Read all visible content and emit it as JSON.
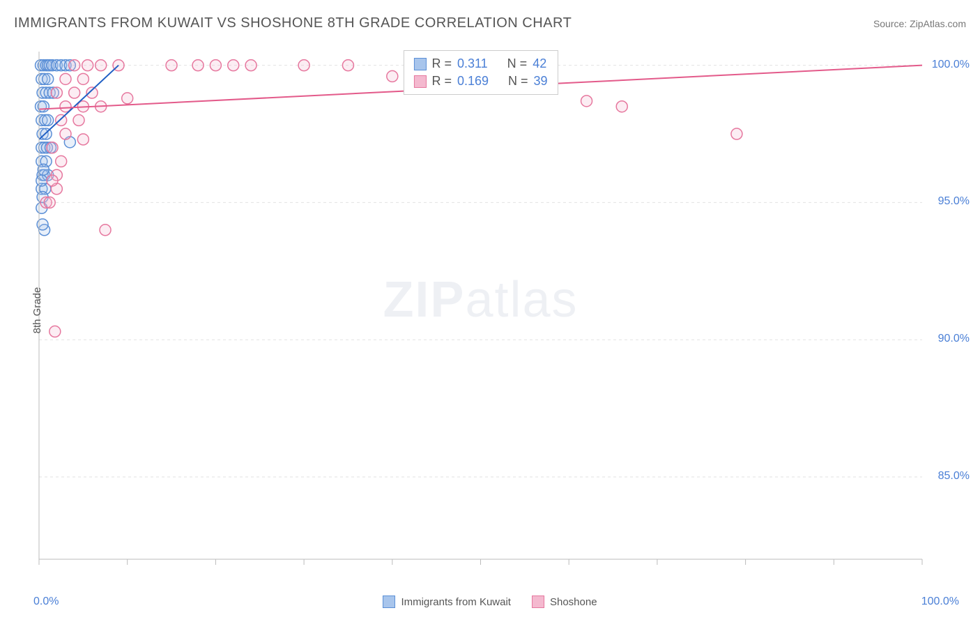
{
  "title": "IMMIGRANTS FROM KUWAIT VS SHOSHONE 8TH GRADE CORRELATION CHART",
  "source": "Source: ZipAtlas.com",
  "ylabel": "8th Grade",
  "watermark_bold": "ZIP",
  "watermark_light": "atlas",
  "chart": {
    "type": "scatter",
    "xlim": [
      0,
      100
    ],
    "ylim": [
      82,
      100.5
    ],
    "x_ticks": [
      0,
      10,
      20,
      30,
      40,
      50,
      60,
      70,
      80,
      90,
      100
    ],
    "x_tick_labels_shown": {
      "0": "0.0%",
      "100": "100.0%"
    },
    "y_ticks": [
      85,
      90,
      95,
      100
    ],
    "y_tick_labels": {
      "85": "85.0%",
      "90": "90.0%",
      "95": "95.0%",
      "100": "100.0%"
    },
    "grid_color": "#e2e2e2",
    "axis_color": "#bbbbbb",
    "marker_radius": 8,
    "marker_stroke_width": 1.5,
    "marker_fill_opacity": 0.25,
    "series": [
      {
        "name": "Immigrants from Kuwait",
        "color_stroke": "#5b8fd6",
        "color_fill": "#a8c5ec",
        "regression": {
          "x1": 0,
          "y1": 97.3,
          "x2": 9,
          "y2": 100.0,
          "color": "#1f5fc4",
          "width": 2
        },
        "points": [
          [
            0.2,
            100.0
          ],
          [
            0.5,
            100.0
          ],
          [
            0.8,
            100.0
          ],
          [
            1.0,
            100.0
          ],
          [
            1.2,
            100.0
          ],
          [
            1.5,
            100.0
          ],
          [
            2.0,
            100.0
          ],
          [
            2.5,
            100.0
          ],
          [
            3.0,
            100.0
          ],
          [
            3.5,
            100.0
          ],
          [
            0.3,
            99.5
          ],
          [
            0.6,
            99.5
          ],
          [
            1.0,
            99.5
          ],
          [
            0.4,
            99.0
          ],
          [
            0.8,
            99.0
          ],
          [
            1.2,
            99.0
          ],
          [
            1.6,
            99.0
          ],
          [
            0.2,
            98.5
          ],
          [
            0.5,
            98.5
          ],
          [
            0.3,
            98.0
          ],
          [
            0.7,
            98.0
          ],
          [
            1.0,
            98.0
          ],
          [
            0.4,
            97.5
          ],
          [
            0.8,
            97.5
          ],
          [
            0.3,
            97.0
          ],
          [
            0.6,
            97.0
          ],
          [
            0.9,
            97.0
          ],
          [
            1.3,
            97.0
          ],
          [
            3.5,
            97.2
          ],
          [
            0.3,
            96.5
          ],
          [
            0.8,
            96.5
          ],
          [
            0.4,
            96.0
          ],
          [
            0.6,
            96.0
          ],
          [
            1.0,
            96.0
          ],
          [
            0.3,
            95.5
          ],
          [
            0.7,
            95.5
          ],
          [
            0.4,
            95.2
          ],
          [
            0.3,
            95.8
          ],
          [
            0.5,
            96.2
          ],
          [
            0.3,
            94.8
          ],
          [
            0.6,
            94.0
          ],
          [
            0.4,
            94.2
          ]
        ]
      },
      {
        "name": "Shoshone",
        "color_stroke": "#e6779e",
        "color_fill": "#f4b9cf",
        "regression": {
          "x1": 0,
          "y1": 98.4,
          "x2": 100,
          "y2": 100.0,
          "color": "#e35a8a",
          "width": 2
        },
        "points": [
          [
            4.0,
            100.0
          ],
          [
            5.5,
            100.0
          ],
          [
            7.0,
            100.0
          ],
          [
            9.0,
            100.0
          ],
          [
            15.0,
            100.0
          ],
          [
            18.0,
            100.0
          ],
          [
            20.0,
            100.0
          ],
          [
            22.0,
            100.0
          ],
          [
            24.0,
            100.0
          ],
          [
            30.0,
            100.0
          ],
          [
            35.0,
            100.0
          ],
          [
            40.0,
            99.6
          ],
          [
            43.0,
            100.0
          ],
          [
            45.0,
            100.0
          ],
          [
            3.0,
            99.5
          ],
          [
            5.0,
            99.5
          ],
          [
            2.0,
            99.0
          ],
          [
            4.0,
            99.0
          ],
          [
            6.0,
            99.0
          ],
          [
            10.0,
            98.8
          ],
          [
            3.0,
            98.5
          ],
          [
            5.0,
            98.5
          ],
          [
            7.0,
            98.5
          ],
          [
            2.5,
            98.0
          ],
          [
            4.5,
            98.0
          ],
          [
            3.0,
            97.5
          ],
          [
            5.0,
            97.3
          ],
          [
            1.5,
            97.0
          ],
          [
            2.5,
            96.5
          ],
          [
            2.0,
            96.0
          ],
          [
            2.0,
            95.5
          ],
          [
            1.5,
            95.8
          ],
          [
            62.0,
            98.7
          ],
          [
            66.0,
            98.5
          ],
          [
            79.0,
            97.5
          ],
          [
            7.5,
            94.0
          ],
          [
            1.8,
            90.3
          ],
          [
            0.8,
            95.0
          ],
          [
            1.2,
            95.0
          ]
        ]
      }
    ]
  },
  "stats_box": {
    "rows": [
      {
        "R_label": "R =",
        "R": "0.311",
        "N_label": "N =",
        "N": "42",
        "swatch_fill": "#a8c5ec",
        "swatch_border": "#5b8fd6"
      },
      {
        "R_label": "R =",
        "R": "0.169",
        "N_label": "N =",
        "N": "39",
        "swatch_fill": "#f4b9cf",
        "swatch_border": "#e6779e"
      }
    ]
  },
  "legend_bottom": [
    {
      "label": "Immigrants from Kuwait",
      "fill": "#a8c5ec",
      "border": "#5b8fd6"
    },
    {
      "label": "Shoshone",
      "fill": "#f4b9cf",
      "border": "#e6779e"
    }
  ]
}
